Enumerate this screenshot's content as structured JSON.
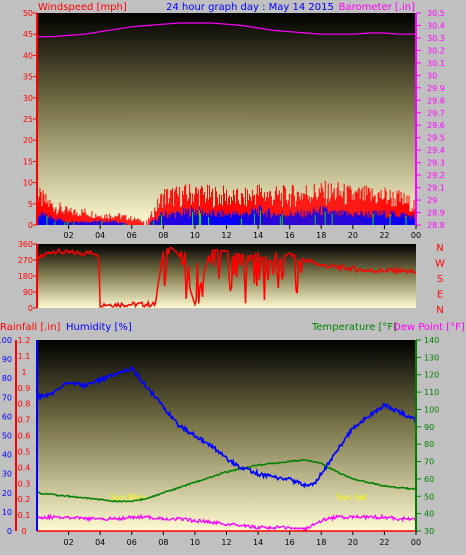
{
  "title": "24 hour graph day : May 14 2015",
  "colors": {
    "background": "#c0c0c0",
    "wind": "#ff0000",
    "wind_avg": "#0000ff",
    "wind_bright": "#00ff00",
    "barometer": "#ff00ff",
    "direction": "#ff0000",
    "humidity": "#0000ff",
    "temperature": "#008000",
    "dew_point": "#ff00ff",
    "rainfall": "#ff0000",
    "sun": "#ffff00",
    "plot_top": "#000000",
    "plot_bottom": "#fffad0"
  },
  "chart_data": [
    {
      "type": "line",
      "name": "wind-and-barometer",
      "left_axis": {
        "label": "Windspeed [mph]",
        "ylim": [
          0,
          50
        ],
        "ticks": [
          "0",
          "5",
          "10",
          "15",
          "20",
          "25",
          "30",
          "35",
          "40",
          "45",
          "50"
        ]
      },
      "right_axis": {
        "label": "Barometer [.in]",
        "ylim": [
          28.8,
          30.5
        ],
        "ticks": [
          "28.8",
          "28.9",
          "29",
          "29.1",
          "29.2",
          "29.3",
          "29.4",
          "29.5",
          "29.6",
          "29.7",
          "29.8",
          "29.9",
          "30",
          "30.1",
          "30.2",
          "30.3",
          "30.4",
          "30.5"
        ]
      },
      "x_ticks": [
        "02",
        "04",
        "06",
        "08",
        "10",
        "12",
        "14",
        "16",
        "18",
        "20",
        "22",
        "00"
      ],
      "barometer": {
        "x": [
          0,
          1,
          2,
          3,
          4,
          5,
          6,
          7,
          8,
          9,
          10,
          11,
          12,
          13,
          14,
          15,
          16,
          17,
          18,
          19,
          20,
          21,
          22,
          23,
          24
        ],
        "y": [
          30.31,
          30.31,
          30.32,
          30.33,
          30.35,
          30.37,
          30.39,
          30.4,
          30.41,
          30.42,
          30.42,
          30.42,
          30.41,
          30.4,
          30.38,
          30.36,
          30.35,
          30.34,
          30.33,
          30.33,
          30.33,
          30.34,
          30.34,
          30.33,
          30.33
        ]
      },
      "gust_envelope": {
        "x": [
          0,
          1,
          2,
          3,
          4,
          5,
          6,
          7,
          8,
          9,
          10,
          11,
          12,
          13,
          14,
          15,
          16,
          17,
          18,
          19,
          20,
          21,
          22,
          23,
          24
        ],
        "y": [
          9,
          6,
          4,
          4,
          3,
          3,
          2,
          1,
          9,
          9,
          10,
          9,
          9,
          8,
          10,
          9,
          9,
          10,
          10,
          10,
          9,
          9,
          9,
          8,
          6
        ]
      },
      "avg_envelope": {
        "x": [
          0,
          1,
          2,
          3,
          4,
          5,
          6,
          7,
          8,
          9,
          10,
          11,
          12,
          13,
          14,
          15,
          16,
          17,
          18,
          19,
          20,
          21,
          22,
          23,
          24
        ],
        "y": [
          3,
          2,
          1,
          1,
          1,
          1,
          0,
          0,
          3,
          3,
          4,
          3,
          3,
          3,
          4,
          3,
          3,
          3,
          4,
          3,
          3,
          3,
          3,
          3,
          2
        ]
      }
    },
    {
      "type": "line",
      "name": "wind-direction",
      "left_axis": {
        "label": "",
        "ylim": [
          0,
          360
        ],
        "ticks": [
          "0",
          "90",
          "180",
          "270",
          "360"
        ]
      },
      "right_labels": [
        "N",
        "W",
        "S",
        "E",
        "N"
      ],
      "direction": {
        "x": [
          0,
          0.5,
          1,
          2,
          3,
          3.9,
          4,
          5,
          6,
          7,
          7.5,
          8,
          8.5,
          9,
          10,
          11,
          12,
          13,
          14,
          15,
          16,
          17,
          18,
          19,
          20,
          21,
          22,
          23,
          24
        ],
        "y": [
          270,
          300,
          320,
          310,
          310,
          310,
          20,
          20,
          20,
          20,
          20,
          330,
          340,
          300,
          20,
          330,
          320,
          300,
          290,
          260,
          310,
          270,
          240,
          230,
          220,
          210,
          210,
          210,
          200
        ]
      }
    },
    {
      "type": "line",
      "name": "temperature-humidity-rain",
      "left_axis": {
        "label": "Rainfall [.in]",
        "ylim": [
          0,
          1.2
        ],
        "ticks": [
          "0",
          "0.1",
          "0.2",
          "0.3",
          "0.4",
          "0.5",
          "0.6",
          "0.7",
          "0.8",
          "0.9",
          "1",
          "1.1",
          "1.2"
        ]
      },
      "left_axis_2": {
        "label": "Humidity [%]",
        "ylim": [
          0,
          100
        ],
        "ticks": [
          "0",
          "10",
          "20",
          "30",
          "40",
          "50",
          "60",
          "70",
          "80",
          "90",
          "100"
        ]
      },
      "right_axis": {
        "label": "Temperature [°F]",
        "ylim": [
          30,
          140
        ],
        "ticks": [
          "30",
          "40",
          "50",
          "60",
          "70",
          "80",
          "90",
          "100",
          "110",
          "120",
          "130",
          "140"
        ]
      },
      "right_axis_2": {
        "label": "Dew Point [°F]"
      },
      "x_ticks": [
        "02",
        "04",
        "06",
        "08",
        "10",
        "12",
        "14",
        "16",
        "18",
        "20",
        "22",
        "00"
      ],
      "annotations": [
        "Sun Rise",
        "Sun Set"
      ],
      "humidity": {
        "x": [
          0,
          1,
          2,
          3,
          4,
          5,
          6,
          7,
          8,
          9,
          10,
          11,
          12,
          13,
          14,
          15,
          16,
          17,
          17.5,
          18,
          19,
          20,
          21,
          22,
          23,
          24
        ],
        "y": [
          70,
          72,
          78,
          76,
          79,
          82,
          85,
          75,
          65,
          55,
          50,
          45,
          38,
          33,
          30,
          28,
          27,
          24,
          24,
          30,
          42,
          54,
          60,
          66,
          62,
          58
        ]
      },
      "temperature": {
        "x": [
          0,
          1,
          2,
          3,
          4,
          5,
          6,
          7,
          8,
          9,
          10,
          11,
          12,
          13,
          14,
          15,
          16,
          17,
          18,
          19,
          20,
          21,
          22,
          23,
          24
        ],
        "y": [
          52,
          51,
          50,
          49,
          48,
          47,
          47,
          49,
          52,
          55,
          58,
          61,
          64,
          66,
          68,
          69,
          70,
          71,
          69,
          64,
          60,
          58,
          56,
          55,
          54
        ]
      },
      "dew_point": {
        "x": [
          0,
          1,
          2,
          3,
          4,
          5,
          6,
          7,
          8,
          9,
          10,
          11,
          12,
          13,
          14,
          15,
          16,
          17,
          18,
          19,
          20,
          21,
          22,
          23,
          24
        ],
        "y": [
          38,
          38,
          38,
          37,
          37,
          37,
          38,
          38,
          37,
          37,
          36,
          35,
          34,
          33,
          32,
          32,
          32,
          31,
          36,
          38,
          38,
          38,
          38,
          37,
          37
        ]
      },
      "rainfall": {
        "x": [
          0,
          24
        ],
        "y": [
          0,
          0
        ]
      }
    }
  ]
}
